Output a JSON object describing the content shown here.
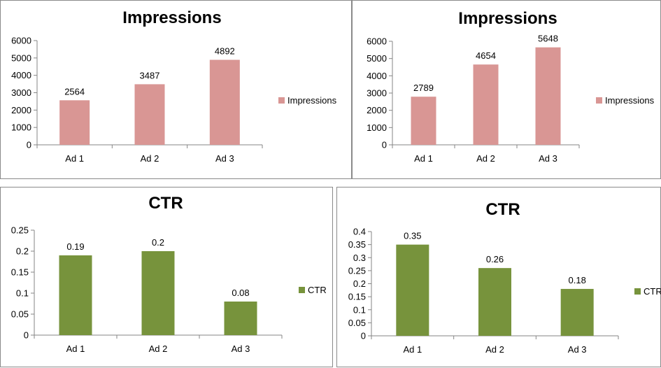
{
  "chart_data": [
    {
      "type": "bar",
      "title": "Impressions",
      "categories": [
        "Ad 1",
        "Ad 2",
        "Ad 3"
      ],
      "series": [
        {
          "name": "Impressions",
          "values": [
            2564,
            3487,
            4892
          ],
          "color": "#d99694"
        }
      ],
      "yticks": [
        "0",
        "1000",
        "2000",
        "3000",
        "4000",
        "5000",
        "6000"
      ],
      "ylim": [
        0,
        6000
      ],
      "legend": "right",
      "grid": false
    },
    {
      "type": "bar",
      "title": "Impressions",
      "categories": [
        "Ad 1",
        "Ad 2",
        "Ad 3"
      ],
      "series": [
        {
          "name": "Impressions",
          "values": [
            2789,
            4654,
            5648
          ],
          "color": "#d99694"
        }
      ],
      "yticks": [
        "0",
        "1000",
        "2000",
        "3000",
        "4000",
        "5000",
        "6000"
      ],
      "ylim": [
        0,
        6000
      ],
      "legend": "right",
      "grid": false
    },
    {
      "type": "bar",
      "title": "CTR",
      "categories": [
        "Ad 1",
        "Ad 2",
        "Ad 3"
      ],
      "series": [
        {
          "name": "CTR",
          "values": [
            0.19,
            0.2,
            0.08
          ],
          "color": "#77933c"
        }
      ],
      "yticks": [
        "0",
        "0.05",
        "0.1",
        "0.15",
        "0.2",
        "0.25"
      ],
      "ylim": [
        0,
        0.25
      ],
      "legend": "right",
      "grid": false
    },
    {
      "type": "bar",
      "title": "CTR",
      "categories": [
        "Ad 1",
        "Ad 2",
        "Ad 3"
      ],
      "series": [
        {
          "name": "CTR",
          "values": [
            0.35,
            0.26,
            0.18
          ],
          "color": "#77933c"
        }
      ],
      "yticks": [
        "0",
        "0.05",
        "0.1",
        "0.15",
        "0.2",
        "0.25",
        "0.3",
        "0.35",
        "0.4"
      ],
      "ylim": [
        0,
        0.4
      ],
      "legend": "right",
      "grid": false
    }
  ]
}
